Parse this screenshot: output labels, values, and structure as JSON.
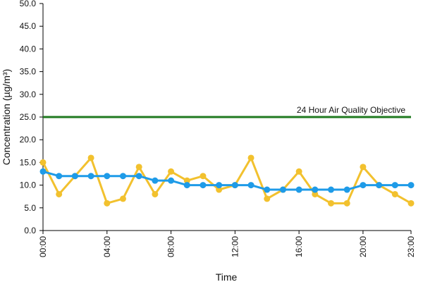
{
  "chart_data": {
    "type": "line",
    "title": "",
    "xlabel": "Time",
    "ylabel": "Concentration (µg/m³)",
    "ylim": [
      0,
      50
    ],
    "yticks": [
      "0.0",
      "5.0",
      "10.0",
      "15.0",
      "20.0",
      "25.0",
      "30.0",
      "35.0",
      "40.0",
      "45.0",
      "50.0"
    ],
    "x": [
      "00:00",
      "01:00",
      "02:00",
      "03:00",
      "04:00",
      "05:00",
      "06:00",
      "07:00",
      "08:00",
      "09:00",
      "10:00",
      "11:00",
      "12:00",
      "13:00",
      "14:00",
      "15:00",
      "16:00",
      "17:00",
      "18:00",
      "19:00",
      "20:00",
      "21:00",
      "22:00",
      "23:00"
    ],
    "xtick_labels": [
      "00:00",
      "04:00",
      "08:00",
      "12:00",
      "16:00",
      "20:00",
      "23:00"
    ],
    "grid": false,
    "legend": "none",
    "series": [
      {
        "color": "#f2c12e",
        "values": [
          15,
          8,
          12,
          16,
          6,
          7,
          14,
          8,
          13,
          11,
          12,
          9,
          10,
          16,
          7,
          9,
          13,
          8,
          6,
          6,
          14,
          10,
          8,
          6
        ]
      },
      {
        "color": "#1e9be8",
        "values": [
          13,
          12,
          12,
          12,
          12,
          12,
          12,
          11,
          11,
          10,
          10,
          10,
          10,
          10,
          9,
          9,
          9,
          9,
          9,
          9,
          10,
          10,
          10,
          10
        ]
      }
    ],
    "reference_lines": [
      {
        "label": "24 Hour Air Quality Objective",
        "value": 25,
        "color": "#1f7a1f"
      }
    ]
  }
}
